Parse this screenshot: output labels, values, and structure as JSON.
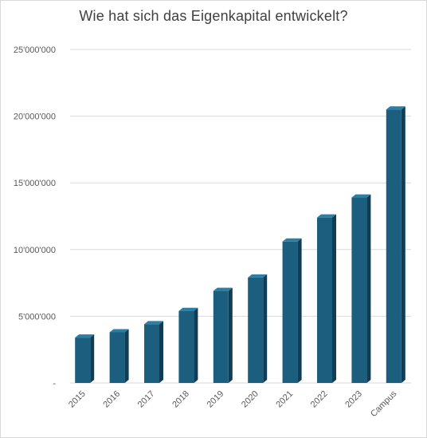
{
  "chart_data": {
    "type": "bar",
    "title": "Wie hat sich das Eigenkapital entwickelt?",
    "xlabel": "",
    "ylabel": "",
    "categories": [
      "2015",
      "2016",
      "2017",
      "2018",
      "2019",
      "2020",
      "2021",
      "2022",
      "2023",
      "Campus"
    ],
    "values": [
      3400000,
      3800000,
      4400000,
      5400000,
      6900000,
      7900000,
      10600000,
      12400000,
      13900000,
      20500000
    ],
    "ylim": [
      0,
      25000000
    ],
    "yticks": [
      {
        "value": 0,
        "label": "-"
      },
      {
        "value": 5000000,
        "label": "5'000'000"
      },
      {
        "value": 10000000,
        "label": "10'000'000"
      },
      {
        "value": 15000000,
        "label": "15'000'000"
      },
      {
        "value": 20000000,
        "label": "20'000'000"
      },
      {
        "value": 25000000,
        "label": "25'000'000"
      }
    ],
    "grid": true,
    "legend": "none",
    "bar_style": "3d-column",
    "colors": {
      "bar_front": "#1b5e7e",
      "bar_side": "#0f3d55",
      "bar_top": "#2c7ea3",
      "grid": "#d9d9d9",
      "text": "#595959",
      "title": "#404040"
    }
  }
}
